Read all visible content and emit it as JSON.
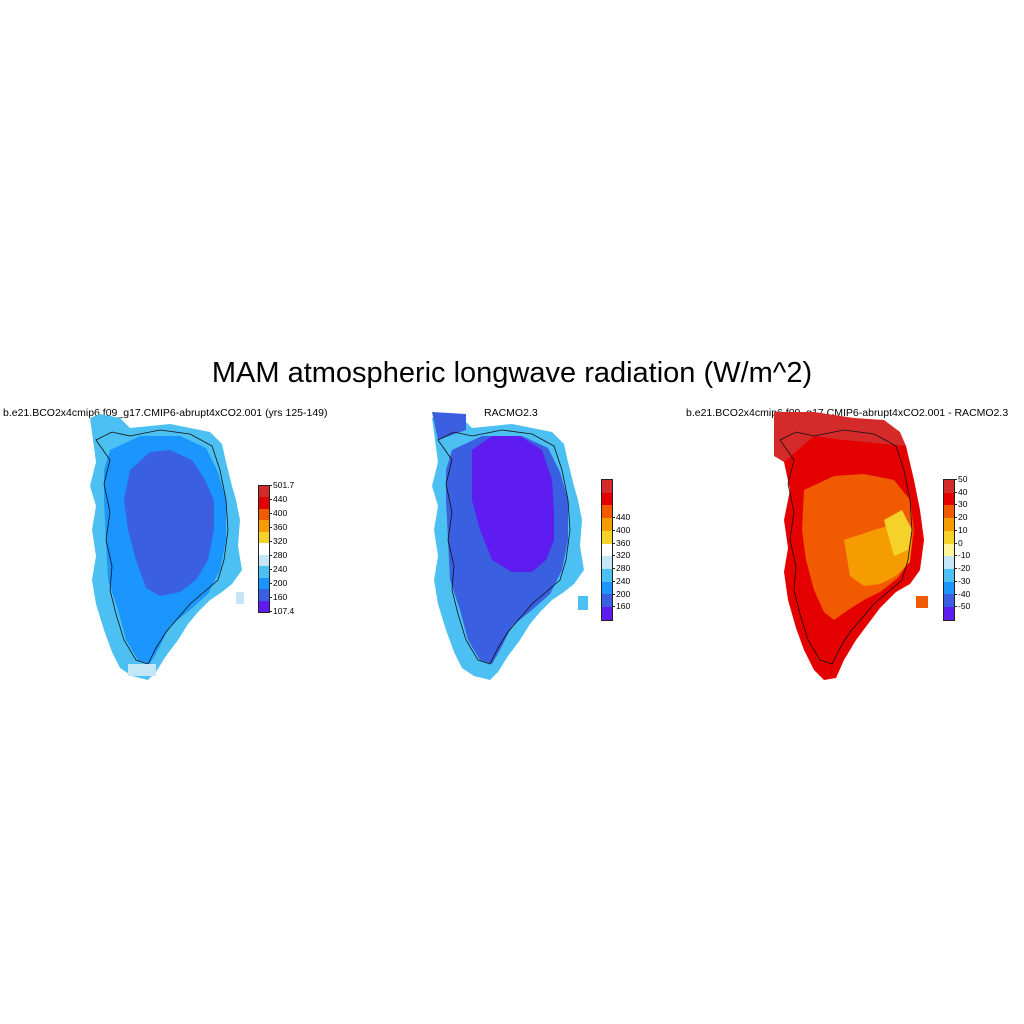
{
  "title": "MAM atmospheric longwave radiation (W/m^2)",
  "panels": [
    {
      "id": "model",
      "title": "b.e21.BCO2x4cmip6.f09_g17.CMIP6-abrupt4xCO2.001 (yrs 125-149)",
      "colorbar": {
        "colors": [
          "#5e1cf0",
          "#3a5fe0",
          "#1c96ff",
          "#4cc0f2",
          "#c4e6f6",
          "#ffffff",
          "#f5d22a",
          "#f59d00",
          "#f25a00",
          "#e50000",
          "#d42a2a"
        ],
        "labels": [
          "107.4",
          "160",
          "200",
          "240",
          "280",
          "320",
          "360",
          "400",
          "440",
          "501.7"
        ]
      }
    },
    {
      "id": "racmo",
      "title": "RACMO2.3",
      "colorbar": {
        "colors": [
          "#5e1cf0",
          "#3a5fe0",
          "#1c96ff",
          "#4cc0f2",
          "#c4e6f6",
          "#ffffff",
          "#f5d22a",
          "#f59d00",
          "#f25a00",
          "#e50000",
          "#d42a2a"
        ],
        "labels": [
          "160",
          "200",
          "240",
          "280",
          "320",
          "360",
          "400",
          "440"
        ]
      }
    },
    {
      "id": "diff",
      "title": "b.e21.BCO2x4cmip6.f09_g17.CMIP6-abrupt4xCO2.001 - RACMO2.3",
      "colorbar": {
        "colors": [
          "#5e1cf0",
          "#3a5fe0",
          "#1c96ff",
          "#4cc0f2",
          "#c4e6f6",
          "#fff59a",
          "#f5d22a",
          "#f59d00",
          "#f25a00",
          "#e50000",
          "#d42a2a"
        ],
        "labels": [
          "-50",
          "-40",
          "-30",
          "-20",
          "-10",
          "0",
          "10",
          "20",
          "30",
          "40",
          "50"
        ]
      }
    }
  ]
}
